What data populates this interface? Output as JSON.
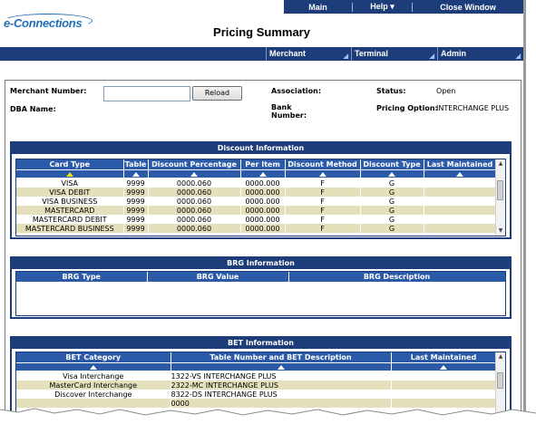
{
  "top_nav": {
    "main": "Main",
    "help": "Help",
    "close": "Close Window"
  },
  "logo": {
    "text": "e-Connections"
  },
  "page_title": "Pricing Summary",
  "menu": [
    {
      "label": "Merchant"
    },
    {
      "label": "Terminal"
    },
    {
      "label": "Admin"
    }
  ],
  "merchant": {
    "number_label": "Merchant Number:",
    "number_value": "",
    "reload": "Reload",
    "dba_label": "DBA Name:",
    "association_label": "Association:",
    "bank_label_line1": "Bank",
    "bank_label_line2": "Number:",
    "status_label": "Status:",
    "status_value": "Open",
    "pricing_label": "Pricing Option:",
    "pricing_value": "INTERCHANGE PLUS"
  },
  "discount": {
    "title": "Discount Information",
    "columns": [
      "Card Type",
      "Table",
      "Discount Percentage",
      "Per Item",
      "Discount Method",
      "Discount Type",
      "Last Maintained"
    ],
    "rows": [
      [
        "VISA",
        "9999",
        "0000.060",
        "0000.000",
        "F",
        "G",
        ""
      ],
      [
        "VISA DEBIT",
        "9999",
        "0000.060",
        "0000.000",
        "F",
        "G",
        ""
      ],
      [
        "VISA BUSINESS",
        "9999",
        "0000.060",
        "0000.000",
        "F",
        "G",
        ""
      ],
      [
        "MASTERCARD",
        "9999",
        "0000.060",
        "0000.000",
        "F",
        "G",
        ""
      ],
      [
        "MASTERCARD DEBIT",
        "9999",
        "0000.060",
        "0000.000",
        "F",
        "G",
        ""
      ],
      [
        "MASTERCARD BUSINESS",
        "9999",
        "0000.060",
        "0000.000",
        "F",
        "G",
        ""
      ]
    ]
  },
  "brg": {
    "title": "BRG Information",
    "columns": [
      "BRG Type",
      "BRG Value",
      "BRG Description"
    ]
  },
  "bet": {
    "title": "BET Information",
    "columns": [
      "BET Category",
      "Table Number and BET Description",
      "Last Maintained"
    ],
    "rows": [
      [
        "Visa Interchange",
        "1322-VS INTERCHANGE PLUS",
        ""
      ],
      [
        "MasterCard Interchange",
        "2322-MC INTERCHANGE PLUS",
        ""
      ],
      [
        "Discover Interchange",
        "8322-DS INTERCHANGE PLUS",
        ""
      ],
      [
        "",
        "0000",
        ""
      ]
    ]
  },
  "colors": {
    "navy": "#1c3d79",
    "header_blue": "#2a5aa8",
    "row_alt": "#e4e0bc",
    "sort_active": "#e8e800"
  }
}
